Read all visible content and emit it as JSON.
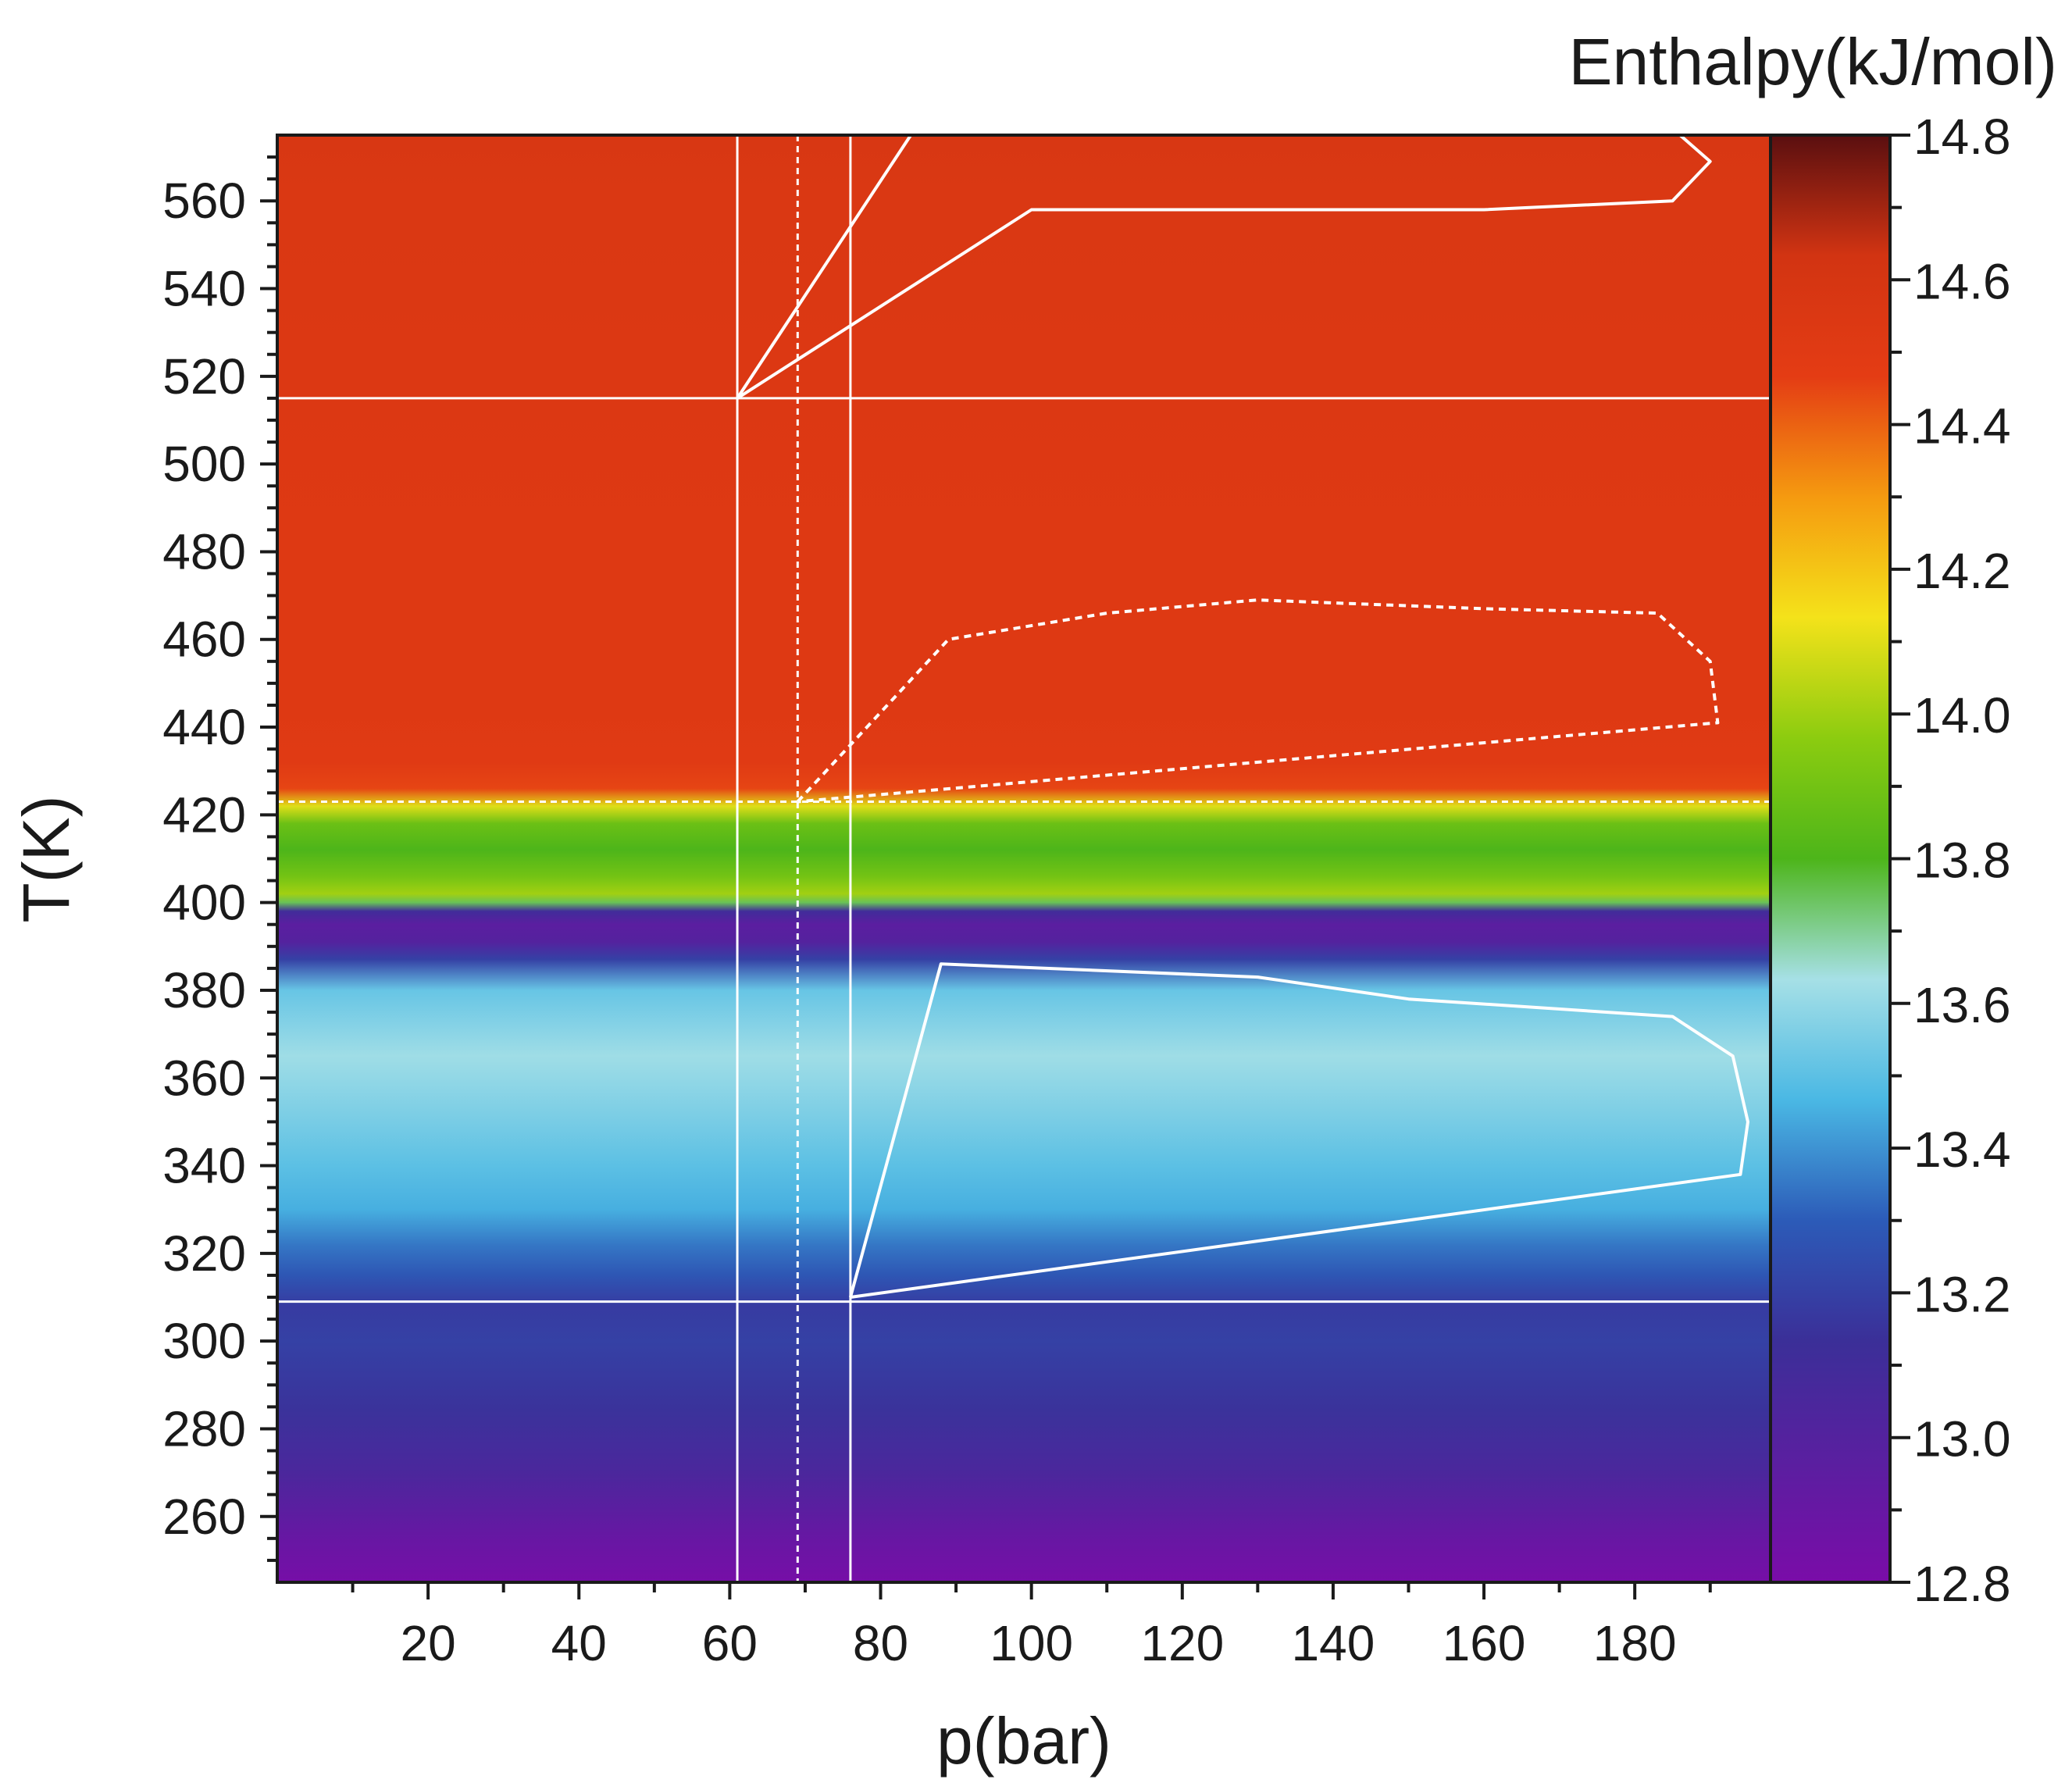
{
  "chart_data": {
    "type": "heatmap",
    "title": "",
    "xlabel": "p(bar)",
    "ylabel": "T(K)",
    "colorbar_label": "Enthalpy(kJ/mol)",
    "xlim": [
      0,
      198
    ],
    "ylim": [
      245,
      575
    ],
    "clim": [
      12.8,
      14.8
    ],
    "x_ticks": [
      20,
      40,
      60,
      80,
      100,
      120,
      140,
      160,
      180
    ],
    "x_tick_labels": [
      "20",
      "40",
      "60",
      "80",
      "100",
      "120",
      "140",
      "160",
      "180"
    ],
    "y_ticks": [
      260,
      280,
      300,
      320,
      340,
      360,
      380,
      400,
      420,
      440,
      460,
      480,
      500,
      520,
      540,
      560
    ],
    "y_tick_labels": [
      "260",
      "280",
      "300",
      "320",
      "340",
      "360",
      "380",
      "400",
      "420",
      "440",
      "460",
      "480",
      "500",
      "520",
      "540",
      "560"
    ],
    "colorbar_ticks": [
      12.8,
      13.0,
      13.2,
      13.4,
      13.6,
      13.8,
      14.0,
      14.2,
      14.4,
      14.6,
      14.8
    ],
    "colorbar_tick_labels": [
      "12.8",
      "13.0",
      "13.2",
      "13.4",
      "13.6",
      "13.8",
      "14.0",
      "14.2",
      "14.4",
      "14.6",
      "14.8"
    ],
    "colormap": [
      "#7a0ca8",
      "#5a1fa0",
      "#3b2f98",
      "#2c5bb8",
      "#4ab8e4",
      "#a6e0e6",
      "#4db51a",
      "#8ccc10",
      "#f4e21a",
      "#f59a10",
      "#e43c14",
      "#d23412",
      "#5a0f10"
    ],
    "temperature_profile": {
      "T": [
        245,
        255,
        270,
        285,
        300,
        308,
        315,
        322,
        330,
        340,
        350,
        365,
        380,
        387,
        391,
        395,
        398,
        400,
        402,
        406,
        412,
        418,
        422,
        426,
        432,
        445,
        480,
        520,
        560,
        575
      ],
      "enthalpy": [
        12.82,
        12.9,
        13.05,
        13.15,
        13.2,
        13.18,
        13.28,
        13.35,
        13.45,
        13.5,
        13.55,
        13.62,
        13.52,
        13.2,
        13.0,
        12.96,
        13.1,
        13.75,
        14.0,
        13.9,
        13.8,
        13.88,
        14.1,
        14.45,
        14.5,
        14.52,
        14.52,
        14.54,
        14.56,
        14.58
      ]
    },
    "overlay_lines": [
      {
        "style": "solid",
        "orientation": "vertical",
        "p": 61
      },
      {
        "style": "dashed",
        "orientation": "vertical",
        "p": 69
      },
      {
        "style": "solid",
        "orientation": "vertical",
        "p": 76
      },
      {
        "style": "solid",
        "orientation": "horizontal",
        "T": 515
      },
      {
        "style": "dashed",
        "orientation": "horizontal",
        "T": 423
      },
      {
        "style": "solid",
        "orientation": "horizontal",
        "T": 309
      }
    ],
    "overlay_regions": [
      {
        "style": "solid",
        "points": [
          [
            61,
            515
          ],
          [
            84,
            575
          ],
          [
            95,
            576
          ],
          [
            186,
            575
          ],
          [
            190,
            569
          ],
          [
            185,
            560
          ],
          [
            160,
            558
          ],
          [
            100,
            558
          ],
          [
            61,
            515
          ]
        ]
      },
      {
        "style": "dashed",
        "points": [
          [
            69,
            423
          ],
          [
            89,
            460
          ],
          [
            110,
            466
          ],
          [
            130,
            469
          ],
          [
            160,
            467
          ],
          [
            183,
            466
          ],
          [
            190,
            455
          ],
          [
            191,
            441
          ],
          [
            69,
            423
          ]
        ]
      },
      {
        "style": "solid",
        "points": [
          [
            76,
            310
          ],
          [
            88,
            386
          ],
          [
            130,
            383
          ],
          [
            150,
            378
          ],
          [
            185,
            374
          ],
          [
            193,
            365
          ],
          [
            195,
            350
          ],
          [
            194,
            338
          ],
          [
            76,
            310
          ]
        ]
      }
    ]
  }
}
